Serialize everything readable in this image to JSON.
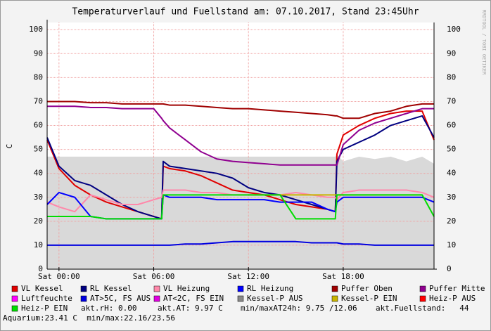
{
  "chart_data": {
    "type": "line",
    "title": "Temperaturverlauf und Fuellstand am: 07.10.2017, Stand 23:45Uhr",
    "y_label": "C",
    "watermark": "RRDTOOL / TOBI OETIKER",
    "x": [
      -0.75,
      0,
      1,
      2,
      3,
      4,
      5,
      6,
      6.5,
      6.6,
      7,
      8,
      9,
      10,
      11,
      12,
      13,
      14,
      15,
      16,
      17,
      17.5,
      17.6,
      18,
      19,
      20,
      21,
      22,
      23,
      23.75
    ],
    "xlim": [
      -0.75,
      23.75
    ],
    "xticks": [
      {
        "value": 0,
        "label": "Sat 00:00"
      },
      {
        "value": 6,
        "label": "Sat 06:00"
      },
      {
        "value": 12,
        "label": "Sat 12:00"
      },
      {
        "value": 18,
        "label": "Sat 18:00"
      }
    ],
    "ylim": [
      0,
      103
    ],
    "yticks": [
      0,
      10,
      20,
      30,
      40,
      50,
      60,
      70,
      80,
      90,
      100
    ],
    "grid": true,
    "series": [
      {
        "name": "VL Kessel",
        "color": "#e00000",
        "values": [
          54,
          42,
          35,
          31,
          28,
          26,
          24,
          22,
          21,
          43,
          42,
          41,
          39,
          36,
          33,
          32,
          31,
          29,
          27,
          26,
          25,
          24,
          48,
          56,
          60,
          63,
          65,
          66,
          66,
          54
        ]
      },
      {
        "name": "RL Kessel",
        "color": "#000080",
        "values": [
          55,
          43,
          37,
          35,
          31,
          27,
          24,
          22,
          21,
          45,
          43,
          42,
          41,
          40,
          38,
          34,
          32,
          31,
          29,
          27,
          25,
          24,
          45,
          50,
          53,
          56,
          60,
          62,
          64,
          55
        ]
      },
      {
        "name": "VL Heizung",
        "color": "#ff88aa",
        "values": [
          28,
          26,
          24,
          31,
          29,
          27,
          27,
          29,
          30,
          33,
          33,
          33,
          32,
          32,
          31,
          31,
          31,
          31,
          32,
          31,
          30,
          30,
          29,
          32,
          33,
          33,
          33,
          33,
          32,
          30
        ]
      },
      {
        "name": "RL Heizung",
        "color": "#0000ff",
        "values": [
          27,
          32,
          30,
          22,
          21,
          21,
          21,
          21,
          21,
          31,
          30,
          30,
          30,
          29,
          29,
          29,
          29,
          28,
          28,
          28,
          25,
          24,
          28,
          30,
          30,
          30,
          30,
          30,
          30,
          28
        ]
      },
      {
        "name": "Puffer Oben",
        "color": "#a00000",
        "values": [
          70,
          70,
          70,
          69.5,
          69.5,
          69,
          69,
          69,
          69,
          69,
          68.5,
          68.5,
          68,
          67.5,
          67,
          67,
          66.5,
          66,
          65.5,
          65,
          64.5,
          64,
          64,
          63,
          63,
          65,
          66,
          68,
          69,
          69
        ]
      },
      {
        "name": "Puffer Mitte",
        "color": "#900090",
        "values": [
          68,
          68,
          68,
          67.5,
          67.5,
          67,
          67,
          67,
          63,
          62,
          59,
          54,
          49,
          46,
          45,
          44.5,
          44,
          43.5,
          43.5,
          43.5,
          43.5,
          43.5,
          43.5,
          52,
          58,
          61,
          63,
          65,
          67,
          67
        ]
      },
      {
        "name": "Luftfeuchte",
        "color": "#ff00ff",
        "values": [
          null,
          null,
          null,
          null,
          null,
          null,
          null,
          null,
          null,
          null,
          null,
          null,
          null,
          null,
          null,
          null,
          null,
          null,
          null,
          null,
          null,
          null,
          null,
          null,
          null,
          null,
          null,
          null,
          null,
          null
        ]
      },
      {
        "name": "AT>5C, FS AUS",
        "color": "#0000e0",
        "values": [
          10,
          10,
          10,
          10,
          10,
          10,
          10,
          10,
          10,
          10,
          10,
          10.5,
          10.5,
          11,
          11.5,
          11.5,
          11.5,
          11.5,
          11.5,
          11,
          11,
          11,
          11,
          10.5,
          10.5,
          10,
          10,
          10,
          10,
          10
        ]
      },
      {
        "name": "AT<2C, FS EIN",
        "color": "#e000e0",
        "values": [
          null,
          null,
          null,
          null,
          null,
          null,
          null,
          null,
          null,
          null,
          null,
          null,
          null,
          null,
          null,
          null,
          null,
          null,
          null,
          null,
          null,
          null,
          null,
          null,
          null,
          null,
          null,
          null,
          null,
          null
        ]
      },
      {
        "name": "Kessel-P AUS",
        "color": "#888888",
        "area": "#d9d9d9",
        "values": [
          47,
          47,
          47,
          47,
          47,
          47,
          47,
          47,
          47,
          47,
          47,
          47,
          47,
          47,
          47,
          47,
          47,
          47,
          47,
          47,
          47,
          47,
          48,
          45,
          47,
          46,
          47,
          45,
          47,
          44
        ]
      },
      {
        "name": "Kessel-P EIN",
        "color": "#c8b400",
        "values": [
          null,
          null,
          null,
          null,
          null,
          null,
          null,
          null,
          null,
          null,
          null,
          null,
          null,
          null,
          null,
          31,
          31,
          31,
          31,
          31,
          31,
          31,
          31,
          31,
          31,
          31,
          31,
          31,
          31,
          null
        ]
      },
      {
        "name": "Heiz-P AUS",
        "color": "#ff0000",
        "values": [
          null,
          null,
          null,
          null,
          null,
          null,
          null,
          null,
          null,
          null,
          null,
          null,
          null,
          null,
          null,
          null,
          null,
          null,
          null,
          null,
          null,
          null,
          null,
          null,
          null,
          null,
          null,
          null,
          null,
          null
        ]
      },
      {
        "name": "Heiz-P EIN",
        "color": "#00dd00",
        "values": [
          22,
          22,
          22,
          22,
          21,
          21,
          21,
          21,
          21,
          31,
          31,
          31,
          31,
          31,
          31,
          31,
          31,
          31,
          21,
          21,
          21,
          21,
          31,
          31,
          31,
          31,
          31,
          31,
          31,
          22
        ]
      }
    ],
    "notes": [
      "akt.rH: 0.00",
      "akt.AT: 9.97 C",
      "min/maxAT24h: 9.75 /12.06",
      "akt.Fuellstand:   44",
      "Aquarium:23.41 C  min/max:22.16/23.56"
    ]
  }
}
